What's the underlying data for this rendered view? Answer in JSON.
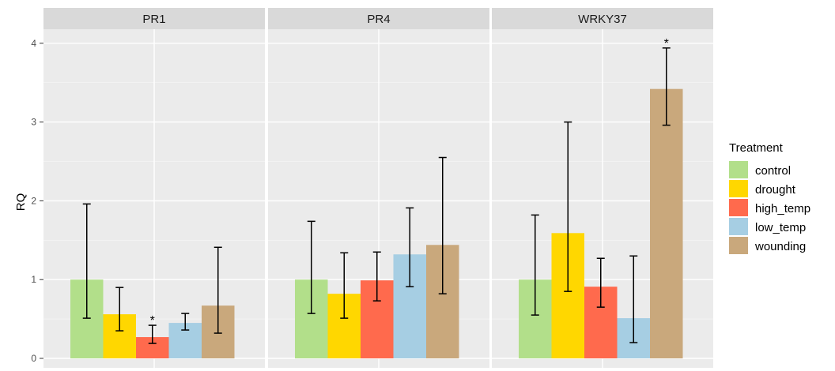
{
  "chart_data": {
    "type": "bar",
    "ylabel": "RQ",
    "ylim": [
      0,
      4.2
    ],
    "yticks": [
      0,
      1,
      2,
      3,
      4
    ],
    "grid": true,
    "legend": {
      "title": "Treatment",
      "placement": "right"
    },
    "series": [
      {
        "name": "control",
        "color": "#b2df8a"
      },
      {
        "name": "drought",
        "color": "#ffd700"
      },
      {
        "name": "high_temp",
        "color": "#ff6a4d"
      },
      {
        "name": "low_temp",
        "color": "#a6cee3"
      },
      {
        "name": "wounding",
        "color": "#c9a87c"
      }
    ],
    "panels": [
      {
        "title": "PR1",
        "values": [
          1.0,
          0.56,
          0.27,
          0.45,
          0.67
        ],
        "err_low": [
          0.51,
          0.35,
          0.19,
          0.36,
          0.32
        ],
        "err_high": [
          1.96,
          0.9,
          0.42,
          0.57,
          1.41
        ],
        "significance": [
          "",
          "",
          "*",
          "",
          ""
        ]
      },
      {
        "title": "PR4",
        "values": [
          1.0,
          0.82,
          0.99,
          1.32,
          1.44
        ],
        "err_low": [
          0.57,
          0.51,
          0.73,
          0.91,
          0.82
        ],
        "err_high": [
          1.74,
          1.34,
          1.35,
          1.91,
          2.55
        ],
        "significance": [
          "",
          "",
          "",
          "",
          ""
        ]
      },
      {
        "title": "WRKY37",
        "values": [
          1.0,
          1.59,
          0.91,
          0.51,
          3.42
        ],
        "err_low": [
          0.55,
          0.85,
          0.65,
          0.2,
          2.96
        ],
        "err_high": [
          1.82,
          3.0,
          1.27,
          1.3,
          3.94
        ],
        "significance": [
          "",
          "",
          "",
          "",
          "*"
        ]
      }
    ]
  }
}
